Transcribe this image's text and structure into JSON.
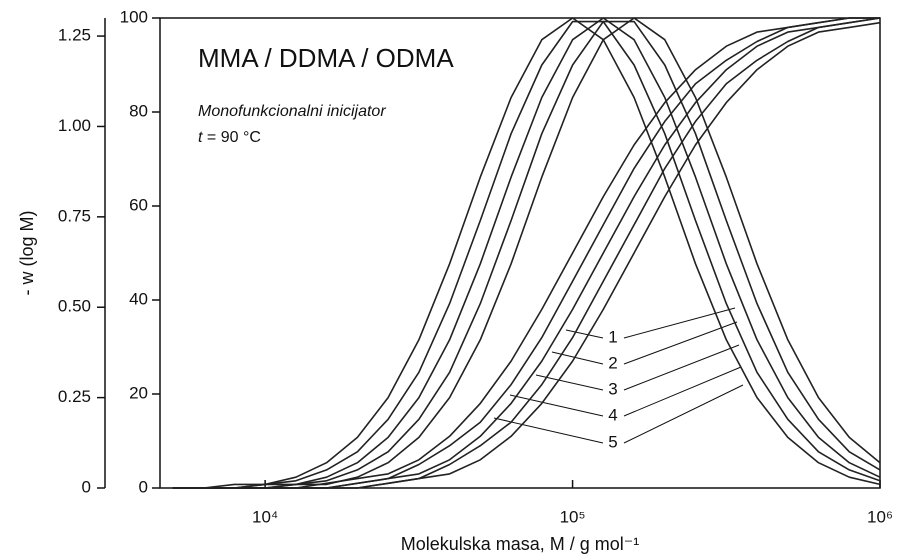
{
  "chart_data": {
    "type": "line",
    "title": "MMA / DDMA / ODMA",
    "annotation": "Monofunkcionalni inicijator",
    "condition": {
      "var": "t",
      "text": "= 90 °C"
    },
    "x_label": "Molekulska masa, M / g mol⁻¹",
    "y_label": "- w (log M)",
    "log_x": true,
    "xlim": [
      4550,
      1000000
    ],
    "xticks": [
      {
        "value": 10000,
        "label": "10⁴"
      },
      {
        "value": 100000,
        "label": "10⁵"
      },
      {
        "value": 1000000,
        "label": "10⁶"
      }
    ],
    "ylim": [
      0,
      1.3
    ],
    "yticks": [
      0,
      {
        "value": 0.25,
        "label": "0.25"
      },
      {
        "value": 0.5,
        "label": "0.50"
      },
      {
        "value": 0.75,
        "label": "0.75"
      },
      {
        "value": 1,
        "label": "1.00"
      },
      {
        "value": 1.25,
        "label": "1.25"
      }
    ],
    "y2lim": [
      0,
      100
    ],
    "y2ticks": [
      0,
      20,
      40,
      60,
      80,
      100
    ],
    "x": [
      5012,
      6310,
      7943,
      10000,
      12589,
      15849,
      19953,
      25119,
      31623,
      39811,
      50119,
      63096,
      79433,
      100000,
      125893,
      158489,
      199526,
      251189,
      316228,
      398107,
      501187,
      630957,
      794328,
      1000000
    ],
    "series": [
      {
        "name": "1",
        "color": "#222",
        "values": [
          0,
          0,
          0.01,
          0.01,
          0.03,
          0.07,
          0.14,
          0.25,
          0.41,
          0.62,
          0.86,
          1.08,
          1.24,
          1.3,
          1.24,
          1.08,
          0.86,
          0.62,
          0.41,
          0.25,
          0.14,
          0.07,
          0.03,
          0.01
        ]
      },
      {
        "name": "2",
        "color": "#222",
        "values": [
          0,
          0,
          0,
          0.01,
          0.02,
          0.05,
          0.1,
          0.19,
          0.32,
          0.51,
          0.74,
          0.98,
          1.17,
          1.29,
          1.29,
          1.17,
          0.98,
          0.74,
          0.51,
          0.32,
          0.19,
          0.1,
          0.05,
          0.02
        ]
      },
      {
        "name": "3",
        "color": "#222",
        "values": [
          0,
          0,
          0,
          0.01,
          0.01,
          0.03,
          0.07,
          0.14,
          0.25,
          0.41,
          0.62,
          0.86,
          1.08,
          1.24,
          1.3,
          1.24,
          1.08,
          0.86,
          0.62,
          0.41,
          0.25,
          0.14,
          0.07,
          0.03
        ]
      },
      {
        "name": "4",
        "color": "#222",
        "values": [
          0,
          0,
          0,
          0,
          0.01,
          0.02,
          0.05,
          0.1,
          0.19,
          0.32,
          0.51,
          0.74,
          0.98,
          1.17,
          1.29,
          1.29,
          1.17,
          0.98,
          0.74,
          0.51,
          0.32,
          0.19,
          0.1,
          0.05
        ]
      },
      {
        "name": "5",
        "color": "#222",
        "values": [
          0,
          0,
          0,
          0,
          0.01,
          0.01,
          0.03,
          0.07,
          0.14,
          0.25,
          0.41,
          0.62,
          0.86,
          1.08,
          1.24,
          1.3,
          1.24,
          1.08,
          0.86,
          0.62,
          0.41,
          0.25,
          0.14,
          0.07
        ]
      }
    ],
    "cumulative_series": [
      {
        "axis": "y2",
        "color": "#222",
        "values": [
          0,
          0,
          0,
          0,
          0,
          1,
          2,
          3,
          6,
          11,
          18,
          27,
          38,
          50,
          62,
          73,
          82,
          89,
          94,
          97,
          98,
          99,
          100,
          100
        ]
      },
      {
        "axis": "y2",
        "color": "#222",
        "values": [
          0,
          0,
          0,
          0,
          0,
          0,
          1,
          2,
          5,
          9,
          14,
          22,
          32,
          44,
          56,
          68,
          78,
          86,
          91,
          95,
          98,
          99,
          100,
          100
        ]
      },
      {
        "axis": "y2",
        "color": "#222",
        "values": [
          0,
          0,
          0,
          0,
          0,
          0,
          1,
          2,
          3,
          6,
          11,
          18,
          27,
          38,
          50,
          62,
          73,
          82,
          89,
          94,
          97,
          98,
          99,
          100
        ]
      },
      {
        "axis": "y2",
        "color": "#222",
        "values": [
          0,
          0,
          0,
          0,
          0,
          0,
          0,
          1,
          2,
          5,
          9,
          14,
          22,
          32,
          44,
          56,
          68,
          78,
          86,
          91,
          95,
          98,
          99,
          100
        ]
      },
      {
        "axis": "y2",
        "color": "#222",
        "values": [
          0,
          0,
          0,
          0,
          0,
          0,
          0,
          1,
          2,
          3,
          6,
          11,
          18,
          27,
          38,
          50,
          62,
          73,
          82,
          89,
          94,
          97,
          98,
          99
        ]
      }
    ]
  }
}
